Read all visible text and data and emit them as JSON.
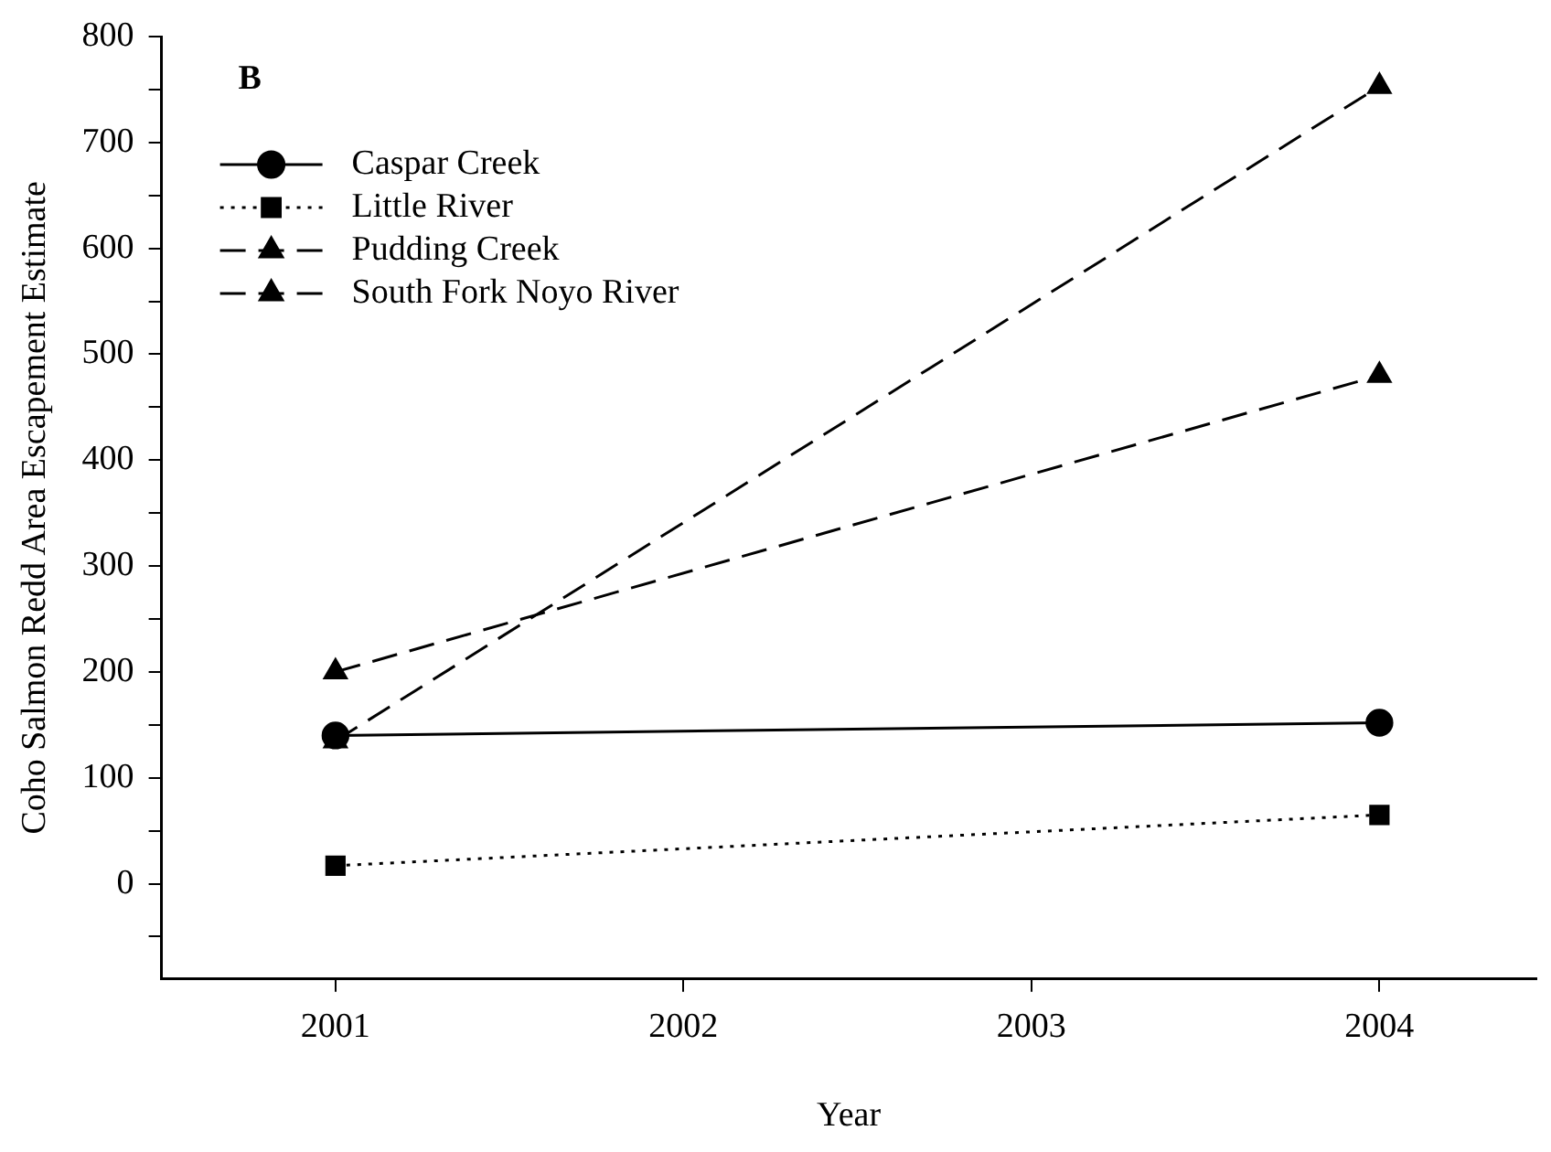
{
  "chart_data": {
    "type": "line",
    "xlabel": "Year",
    "ylabel": "Coho Salmon Redd Area Escapement Estimate",
    "annotations": [
      "B"
    ],
    "x": [
      2001,
      2004
    ],
    "xlim": [
      2000.5,
      2004.45
    ],
    "xticks": [
      2001,
      2002,
      2003,
      2004
    ],
    "ylim": [
      -90,
      800
    ],
    "yticks": [
      {
        "value": -50,
        "label": null
      },
      0,
      {
        "value": 50,
        "label": null
      },
      100,
      {
        "value": 150,
        "label": null
      },
      200,
      {
        "value": 250,
        "label": null
      },
      300,
      {
        "value": 350,
        "label": null
      },
      400,
      {
        "value": 450,
        "label": null
      },
      500,
      {
        "value": 550,
        "label": null
      },
      600,
      {
        "value": 650,
        "label": null
      },
      700,
      {
        "value": 750,
        "label": null
      },
      800
    ],
    "grid": false,
    "legend": "top left",
    "series": [
      {
        "name": "Caspar Creek",
        "color": "#000000",
        "values": [
          140,
          152
        ],
        "marker": "circle",
        "line_style": "solid"
      },
      {
        "name": "Little River",
        "color": "#000000",
        "values": [
          17,
          65
        ],
        "marker": "square",
        "line_style": "dotted"
      },
      {
        "name": "Pudding Creek",
        "color": "#000000",
        "values": [
          135,
          753
        ],
        "marker": "triangle",
        "line_style": "dashed"
      },
      {
        "name": "South Fork Noyo River",
        "color": "#000000",
        "values": [
          200,
          480
        ],
        "marker": "triangle",
        "line_style": "dashed"
      }
    ]
  }
}
